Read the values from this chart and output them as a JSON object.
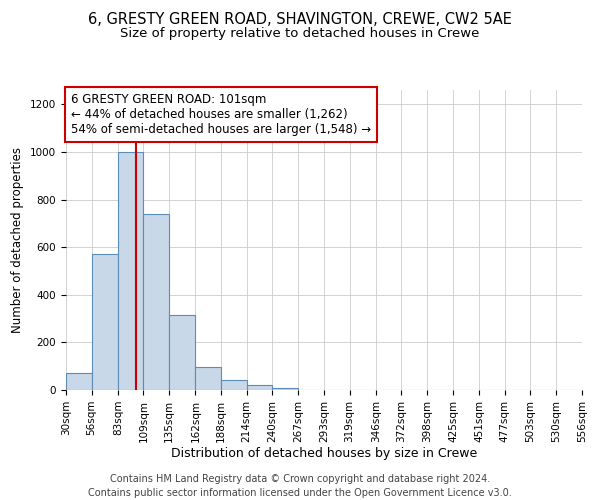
{
  "title": "6, GRESTY GREEN ROAD, SHAVINGTON, CREWE, CW2 5AE",
  "subtitle": "Size of property relative to detached houses in Crewe",
  "xlabel": "Distribution of detached houses by size in Crewe",
  "ylabel": "Number of detached properties",
  "bar_color": "#c8d8e8",
  "bar_edge_color": "#5b8db8",
  "background_color": "#ffffff",
  "grid_color": "#cccccc",
  "vline_x": 101,
  "vline_color": "#cc0000",
  "bin_edges": [
    30,
    56,
    83,
    109,
    135,
    162,
    188,
    214,
    240,
    267,
    293,
    319,
    346,
    372,
    398,
    425,
    451,
    477,
    503,
    530,
    556
  ],
  "bar_heights": [
    70,
    570,
    1000,
    740,
    315,
    95,
    40,
    20,
    10,
    0,
    0,
    0,
    0,
    0,
    0,
    0,
    0,
    0,
    0,
    0
  ],
  "ylim": [
    0,
    1260
  ],
  "yticks": [
    0,
    200,
    400,
    600,
    800,
    1000,
    1200
  ],
  "annotation_line1": "6 GRESTY GREEN ROAD: 101sqm",
  "annotation_line2": "← 44% of detached houses are smaller (1,262)",
  "annotation_line3": "54% of semi-detached houses are larger (1,548) →",
  "annotation_box_color": "#ffffff",
  "annotation_box_edge_color": "#cc0000",
  "footer_line1": "Contains HM Land Registry data © Crown copyright and database right 2024.",
  "footer_line2": "Contains public sector information licensed under the Open Government Licence v3.0.",
  "title_fontsize": 10.5,
  "subtitle_fontsize": 9.5,
  "xlabel_fontsize": 9,
  "ylabel_fontsize": 8.5,
  "tick_fontsize": 7.5,
  "annotation_fontsize": 8.5,
  "footer_fontsize": 7
}
